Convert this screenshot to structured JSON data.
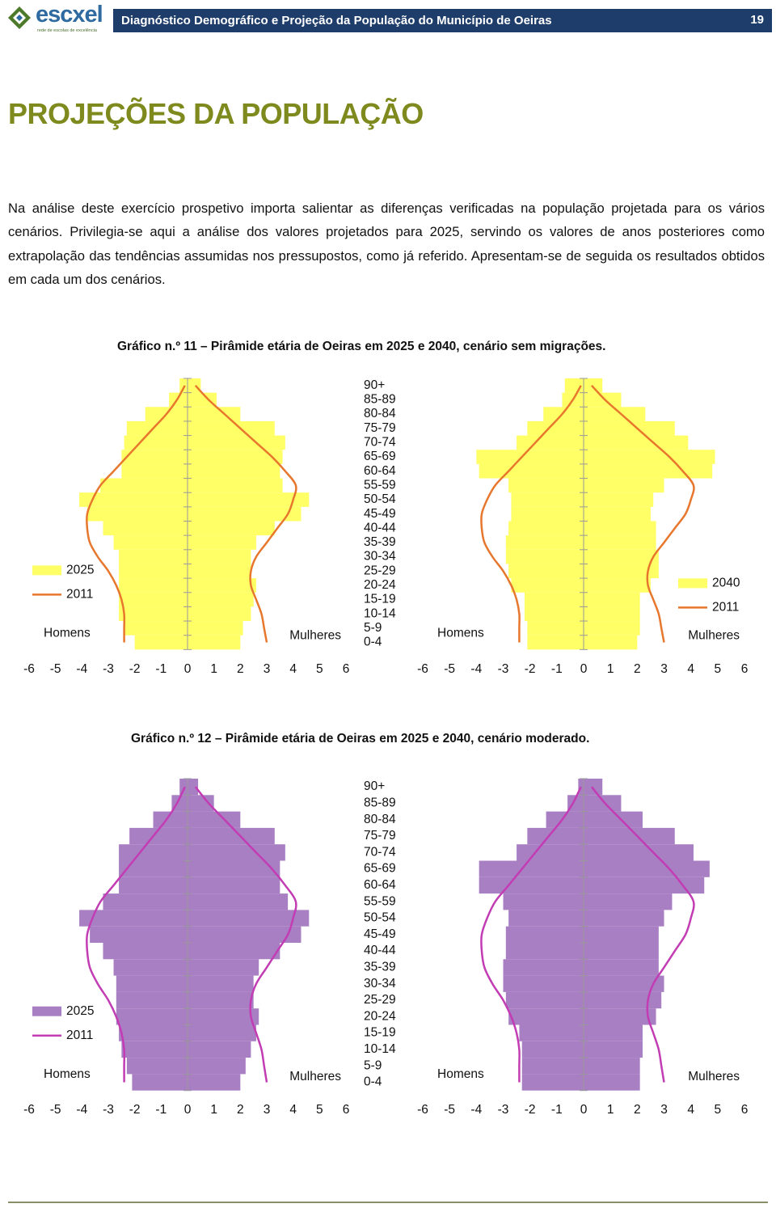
{
  "header": {
    "logo": "escxel",
    "logo_sub": "rede de escolas de excelência",
    "title": "Diagnóstico Demográfico e Projeção da População do Município de Oeiras",
    "page": "19"
  },
  "heading": "PROJEÇÕES DA POPULAÇÃO",
  "paragraph": "Na análise deste exercício prospetivo importa salientar as diferenças verificadas na população projetada para os vários cenários. Privilegia-se aqui a análise dos valores projetados para 2025, servindo os valores de anos posteriores como extrapolação das tendências assumidas nos pressupostos, como já referido. Apresentam-se de seguida os resultados obtidos em cada um dos cenários.",
  "captions": [
    "Gráfico n.º 11 – Pirâmide etária de Oeiras em 2025 e 2040, cenário sem migrações.",
    "Gráfico n.º 12 – Pirâmide etária de Oeiras em 2025 e 2040, cenário moderado."
  ],
  "chart_data": [
    {
      "type": "pyramid",
      "categories": [
        "90+",
        "85-89",
        "80-84",
        "75-79",
        "70-74",
        "65-69",
        "60-64",
        "55-59",
        "50-54",
        "45-49",
        "40-44",
        "35-39",
        "30-34",
        "25-29",
        "20-24",
        "15-19",
        "10-14",
        "5-9",
        "0-4"
      ],
      "series": [
        {
          "name": "2025",
          "mark": "bar",
          "color": "#ffff66",
          "men": [
            -0.3,
            -0.7,
            -1.6,
            -2.3,
            -2.4,
            -2.5,
            -2.5,
            -3.3,
            -4.1,
            -3.8,
            -3.2,
            -2.8,
            -2.6,
            -2.6,
            -2.6,
            -2.6,
            -2.6,
            -2.4,
            -2.0
          ],
          "women": [
            0.5,
            1.1,
            2.0,
            3.3,
            3.7,
            3.6,
            3.5,
            3.6,
            4.6,
            4.3,
            3.3,
            2.6,
            2.4,
            2.4,
            2.6,
            2.5,
            2.4,
            2.1,
            2.0
          ]
        },
        {
          "name": "2011",
          "mark": "line",
          "color": "#e8772e",
          "men": [
            -0.1,
            -0.4,
            -0.8,
            -1.3,
            -1.8,
            -2.3,
            -2.8,
            -3.3,
            -3.6,
            -3.8,
            -3.8,
            -3.7,
            -3.4,
            -3.0,
            -2.7,
            -2.5,
            -2.4,
            -2.4,
            -2.4
          ],
          "women": [
            0.3,
            0.8,
            1.4,
            2.0,
            2.6,
            3.2,
            3.7,
            4.1,
            4.0,
            3.8,
            3.4,
            3.0,
            2.6,
            2.4,
            2.4,
            2.6,
            2.8,
            2.9,
            3.0
          ]
        }
      ],
      "men_label": "Homens",
      "women_label": "Mulheres",
      "legend": "left",
      "xlim": [
        -6,
        6
      ],
      "xticks": [
        -6,
        -5,
        -4,
        -3,
        -2,
        -1,
        0,
        1,
        2,
        3,
        4,
        5,
        6
      ]
    },
    {
      "type": "pyramid",
      "series": [
        {
          "name": "2040",
          "mark": "bar",
          "color": "#ffff66",
          "men": [
            -0.7,
            -0.8,
            -1.5,
            -2.1,
            -2.5,
            -4.0,
            -3.9,
            -2.8,
            -2.7,
            -2.7,
            -2.8,
            -2.9,
            -2.9,
            -2.8,
            -2.7,
            -2.2,
            -2.2,
            -2.1,
            -2.1
          ],
          "women": [
            0.7,
            1.4,
            2.3,
            3.4,
            3.9,
            4.9,
            4.8,
            3.0,
            2.6,
            2.5,
            2.7,
            2.7,
            2.8,
            2.8,
            2.5,
            2.1,
            2.1,
            2.1,
            2.0
          ]
        },
        {
          "name": "2011",
          "mark": "line",
          "color": "#e8772e",
          "men": [
            -0.1,
            -0.4,
            -0.8,
            -1.3,
            -1.8,
            -2.3,
            -2.8,
            -3.3,
            -3.6,
            -3.8,
            -3.8,
            -3.7,
            -3.4,
            -3.0,
            -2.7,
            -2.5,
            -2.4,
            -2.4,
            -2.4
          ],
          "women": [
            0.3,
            0.8,
            1.4,
            2.0,
            2.6,
            3.2,
            3.7,
            4.1,
            4.0,
            3.8,
            3.4,
            3.0,
            2.6,
            2.4,
            2.4,
            2.6,
            2.8,
            2.9,
            3.0
          ]
        }
      ],
      "men_label": "Homens",
      "women_label": "Mulheres",
      "legend": "right",
      "xlim": [
        -6,
        6
      ],
      "xticks": [
        -6,
        -5,
        -4,
        -3,
        -2,
        -1,
        0,
        1,
        2,
        3,
        4,
        5,
        6
      ]
    },
    {
      "type": "pyramid",
      "categories": [
        "90+",
        "85-89",
        "80-84",
        "75-79",
        "70-74",
        "65-69",
        "60-64",
        "55-59",
        "50-54",
        "45-49",
        "40-44",
        "35-39",
        "30-34",
        "25-29",
        "20-24",
        "15-19",
        "10-14",
        "5-9",
        "0-4"
      ],
      "series": [
        {
          "name": "2025",
          "mark": "bar",
          "color": "#a97fc4",
          "men": [
            -0.3,
            -0.6,
            -1.3,
            -2.2,
            -2.6,
            -2.6,
            -2.6,
            -3.2,
            -4.1,
            -3.7,
            -3.2,
            -2.8,
            -2.7,
            -2.7,
            -2.7,
            -2.6,
            -2.5,
            -2.3,
            -2.1
          ],
          "women": [
            0.4,
            1.0,
            2.0,
            3.3,
            3.7,
            3.5,
            3.5,
            3.8,
            4.6,
            4.3,
            3.5,
            2.7,
            2.5,
            2.5,
            2.7,
            2.6,
            2.4,
            2.2,
            2.0
          ]
        },
        {
          "name": "2011",
          "mark": "line",
          "color": "#c23cb4",
          "men": [
            -0.1,
            -0.4,
            -0.8,
            -1.3,
            -1.8,
            -2.3,
            -2.8,
            -3.3,
            -3.6,
            -3.8,
            -3.8,
            -3.7,
            -3.4,
            -3.0,
            -2.7,
            -2.5,
            -2.4,
            -2.4,
            -2.4
          ],
          "women": [
            0.3,
            0.8,
            1.4,
            2.0,
            2.6,
            3.2,
            3.7,
            4.1,
            4.0,
            3.8,
            3.4,
            3.0,
            2.6,
            2.4,
            2.4,
            2.6,
            2.8,
            2.9,
            3.0
          ]
        }
      ],
      "men_label": "Homens",
      "women_label": "Mulheres",
      "legend": "left",
      "xlim": [
        -6,
        6
      ],
      "xticks": [
        -6,
        -5,
        -4,
        -3,
        -2,
        -1,
        0,
        1,
        2,
        3,
        4,
        5,
        6
      ]
    },
    {
      "type": "pyramid",
      "series": [
        {
          "mark": "bar",
          "color": "#a97fc4",
          "men": [
            -0.2,
            -0.6,
            -1.4,
            -2.1,
            -2.5,
            -3.9,
            -3.9,
            -3.0,
            -2.8,
            -2.9,
            -2.9,
            -3.0,
            -3.0,
            -2.9,
            -2.8,
            -2.4,
            -2.3,
            -2.3,
            -2.3
          ],
          "women": [
            0.7,
            1.4,
            2.2,
            3.4,
            4.1,
            4.7,
            4.5,
            3.3,
            3.0,
            2.8,
            2.8,
            2.8,
            3.0,
            2.9,
            2.7,
            2.2,
            2.2,
            2.1,
            2.1
          ]
        },
        {
          "mark": "line",
          "color": "#c23cb4",
          "men": [
            -0.1,
            -0.4,
            -0.8,
            -1.3,
            -1.8,
            -2.3,
            -2.8,
            -3.3,
            -3.6,
            -3.8,
            -3.8,
            -3.7,
            -3.4,
            -3.0,
            -2.7,
            -2.5,
            -2.4,
            -2.4,
            -2.4
          ],
          "women": [
            0.3,
            0.8,
            1.4,
            2.0,
            2.6,
            3.2,
            3.7,
            4.1,
            4.0,
            3.8,
            3.4,
            3.0,
            2.6,
            2.4,
            2.4,
            2.6,
            2.8,
            2.9,
            3.0
          ]
        }
      ],
      "men_label": "Homens",
      "women_label": "Mulheres",
      "xlim": [
        -6,
        6
      ],
      "xticks": [
        -6,
        -5,
        -4,
        -3,
        -2,
        -1,
        0,
        1,
        2,
        3,
        4,
        5,
        6
      ]
    }
  ]
}
